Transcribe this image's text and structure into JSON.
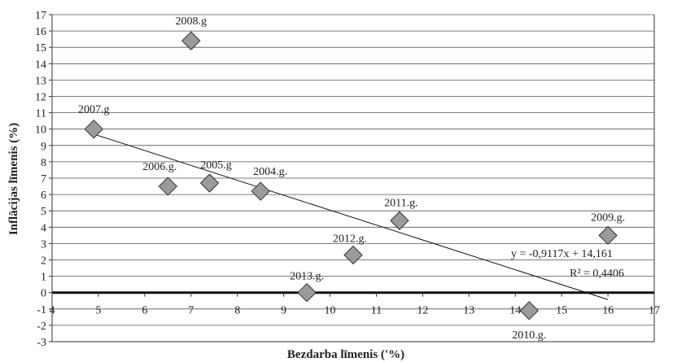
{
  "chart_data": {
    "type": "scatter",
    "title": "",
    "xlabel": "Bezdarba līmenis ('%)",
    "ylabel": "Inflācijas līmenis (%)",
    "xlim": [
      4,
      17
    ],
    "ylim": [
      -3,
      17
    ],
    "x_ticks": [
      "4",
      "5",
      "6",
      "7",
      "8",
      "9",
      "10",
      "11",
      "12",
      "13",
      "14",
      "15",
      "16",
      "17"
    ],
    "y_ticks": [
      "-3",
      "-2",
      "-1",
      "0",
      "1",
      "2",
      "3",
      "4",
      "5",
      "6",
      "7",
      "8",
      "9",
      "10",
      "11",
      "12",
      "13",
      "14",
      "15",
      "16",
      "17"
    ],
    "grid": "horizontal",
    "marker": "diamond",
    "marker_color": "#9a9a9a",
    "points": [
      {
        "label": "2004.g.",
        "x": 8.5,
        "y": 6.2
      },
      {
        "label": "2005.g",
        "x": 7.4,
        "y": 6.7
      },
      {
        "label": "2006.g.",
        "x": 6.5,
        "y": 6.5
      },
      {
        "label": "2007.g",
        "x": 4.9,
        "y": 10.0
      },
      {
        "label": "2008.g",
        "x": 7.0,
        "y": 15.4
      },
      {
        "label": "2009.g.",
        "x": 16.0,
        "y": 3.5
      },
      {
        "label": "2010.g.",
        "x": 14.3,
        "y": -1.1
      },
      {
        "label": "2011.g.",
        "x": 11.5,
        "y": 4.4
      },
      {
        "label": "2012.g.",
        "x": 10.5,
        "y": 2.3
      },
      {
        "label": "2013.g.",
        "x": 9.5,
        "y": 0.0
      }
    ],
    "trendline": {
      "slope": -0.9117,
      "intercept": 14.161,
      "x_range": [
        4.9,
        16.0
      ],
      "equation": "y = -0,9117x + 14,161",
      "r_squared": "R² = 0,4406"
    }
  }
}
